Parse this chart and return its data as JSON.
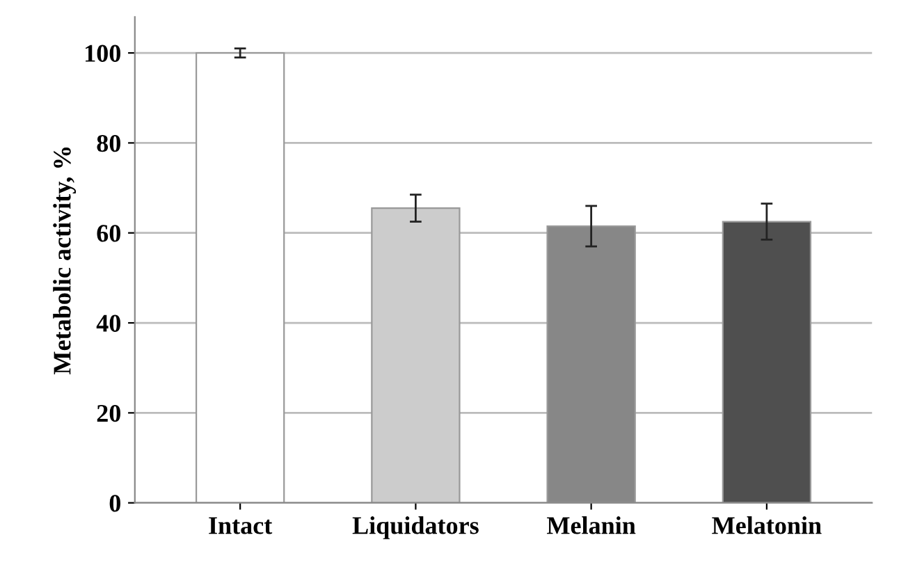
{
  "chart_data": {
    "type": "bar",
    "ylabel": "Metabolic activity, %",
    "categories": [
      "Intact",
      "Liquidators",
      "Melanin",
      "Melatonin"
    ],
    "values": [
      100,
      65.5,
      61.5,
      62.5
    ],
    "errors": [
      1,
      3,
      4.5,
      4
    ],
    "colors": [
      "#ffffff",
      "#cccccc",
      "#878787",
      "#4f4f4f"
    ],
    "ylim": [
      0,
      108
    ],
    "yticks": [
      0,
      20,
      40,
      60,
      80,
      100
    ],
    "grid": "y"
  }
}
